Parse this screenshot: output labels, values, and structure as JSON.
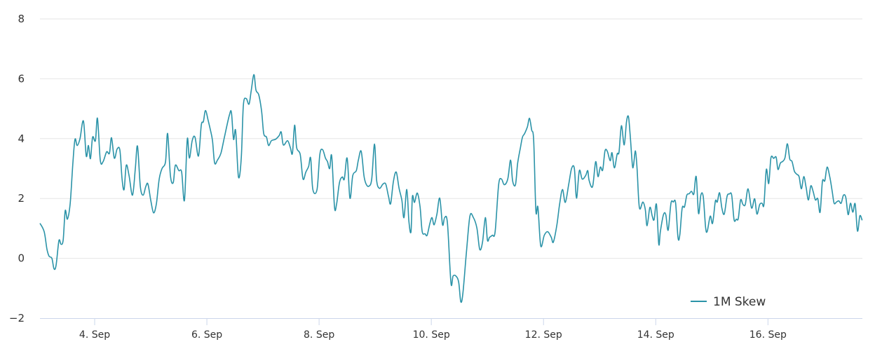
{
  "chart_data": {
    "type": "line",
    "title": "",
    "xlabel": "",
    "ylabel": "",
    "xlim": [
      3.025,
      17.683
    ],
    "ylim": [
      -2,
      8
    ],
    "yticks": [
      -2,
      0,
      2,
      4,
      6,
      8
    ],
    "yticklabels": [
      "−2",
      "0",
      "2",
      "4",
      "6",
      "8"
    ],
    "xticks": [
      4,
      6,
      8,
      10,
      12,
      14,
      16
    ],
    "xticklabels": [
      "4. Sep",
      "6. Sep",
      "8. Sep",
      "10. Sep",
      "12. Sep",
      "14. Sep",
      "16. Sep"
    ],
    "grid": true,
    "legend_position": "bottom-right",
    "series": [
      {
        "name": "1M Skew",
        "color": "#2b93a8",
        "x": [
          3.025,
          3.1,
          3.15,
          3.188,
          3.238,
          3.275,
          3.313,
          3.363,
          3.4,
          3.438,
          3.475,
          3.513,
          3.563,
          3.613,
          3.65,
          3.688,
          3.738,
          3.8,
          3.85,
          3.888,
          3.925,
          3.963,
          4.013,
          4.05,
          4.1,
          4.15,
          4.213,
          4.263,
          4.3,
          4.35,
          4.4,
          4.45,
          4.488,
          4.525,
          4.563,
          4.613,
          4.675,
          4.725,
          4.763,
          4.813,
          4.863,
          4.913,
          4.95,
          5.0,
          5.05,
          5.1,
          5.15,
          5.2,
          5.263,
          5.3,
          5.35,
          5.4,
          5.438,
          5.5,
          5.55,
          5.6,
          5.65,
          5.688,
          5.738,
          5.788,
          5.85,
          5.9,
          5.938,
          5.975,
          6.025,
          6.063,
          6.1,
          6.138,
          6.188,
          6.25,
          6.313,
          6.4,
          6.438,
          6.475,
          6.513,
          6.563,
          6.613,
          6.65,
          6.7,
          6.75,
          6.788,
          6.838,
          6.875,
          6.925,
          6.975,
          7.013,
          7.063,
          7.1,
          7.15,
          7.225,
          7.288,
          7.325,
          7.363,
          7.438,
          7.488,
          7.525,
          7.563,
          7.6,
          7.663,
          7.713,
          7.763,
          7.813,
          7.85,
          7.888,
          7.963,
          8.013,
          8.063,
          8.113,
          8.15,
          8.188,
          8.225,
          8.275,
          8.313,
          8.363,
          8.413,
          8.45,
          8.5,
          8.55,
          8.6,
          8.663,
          8.7,
          8.75,
          8.8,
          8.838,
          8.888,
          8.938,
          8.988,
          9.025,
          9.075,
          9.138,
          9.188,
          9.238,
          9.275,
          9.325,
          9.375,
          9.425,
          9.475,
          9.513,
          9.563,
          9.6,
          9.638,
          9.663,
          9.7,
          9.75,
          9.8,
          9.838,
          9.888,
          9.925,
          9.975,
          10.013,
          10.05,
          10.1,
          10.15,
          10.2,
          10.238,
          10.288,
          10.35,
          10.388,
          10.438,
          10.488,
          10.525,
          10.563,
          10.625,
          10.688,
          10.75,
          10.813,
          10.863,
          10.913,
          10.963,
          11.0,
          11.038,
          11.088,
          11.138,
          11.2,
          11.25,
          11.3,
          11.363,
          11.413,
          11.45,
          11.5,
          11.538,
          11.588,
          11.625,
          11.663,
          11.713,
          11.75,
          11.788,
          11.825,
          11.863,
          11.9,
          11.95,
          12.013,
          12.075,
          12.138,
          12.175,
          12.238,
          12.288,
          12.338,
          12.388,
          12.45,
          12.5,
          12.55,
          12.588,
          12.638,
          12.688,
          12.75,
          12.788,
          12.813,
          12.875,
          12.929,
          12.971,
          13.013,
          13.054,
          13.096,
          13.138,
          13.188,
          13.221,
          13.263,
          13.313,
          13.346,
          13.388,
          13.438,
          13.479,
          13.513,
          13.542,
          13.583,
          13.604,
          13.638,
          13.667,
          13.708,
          13.771,
          13.813,
          13.846,
          13.896,
          13.938,
          13.971,
          14.013,
          14.054,
          14.083,
          14.138,
          14.179,
          14.221,
          14.271,
          14.313,
          14.354,
          14.396,
          14.429,
          14.471,
          14.513,
          14.554,
          14.596,
          14.638,
          14.679,
          14.721,
          14.763,
          14.804,
          14.846,
          14.888,
          14.917,
          14.971,
          15.013,
          15.063,
          15.096,
          15.138,
          15.179,
          15.221,
          15.271,
          15.313,
          15.354,
          15.396,
          15.438,
          15.471,
          15.513,
          15.554,
          15.596,
          15.646,
          15.708,
          15.763,
          15.804,
          15.854,
          15.896,
          15.929,
          15.971,
          16.013,
          16.054,
          16.104,
          16.146,
          16.179,
          16.221,
          16.263,
          16.304,
          16.346,
          16.388,
          16.429,
          16.471,
          16.513,
          16.554,
          16.596,
          16.638,
          16.679,
          16.721,
          16.763,
          16.804,
          16.846,
          16.888,
          16.929,
          16.971,
          17.013,
          17.054,
          17.104,
          17.146,
          17.179,
          17.221,
          17.263,
          17.304,
          17.346,
          17.388,
          17.429,
          17.471,
          17.513,
          17.554,
          17.596,
          17.638,
          17.679
        ],
        "y": [
          1.17,
          0.89,
          0.3,
          0.07,
          0.0,
          -0.35,
          -0.23,
          0.59,
          0.47,
          0.61,
          1.59,
          1.31,
          1.83,
          3.23,
          3.98,
          3.77,
          4.0,
          4.59,
          3.42,
          3.77,
          3.33,
          4.05,
          3.93,
          4.68,
          3.28,
          3.23,
          3.56,
          3.51,
          4.03,
          3.35,
          3.65,
          3.61,
          2.65,
          2.3,
          3.11,
          2.76,
          2.11,
          3.0,
          3.75,
          2.41,
          2.11,
          2.41,
          2.48,
          1.94,
          1.52,
          1.83,
          2.65,
          3.0,
          3.23,
          4.17,
          2.76,
          2.53,
          3.11,
          2.93,
          2.88,
          1.94,
          3.98,
          3.35,
          3.93,
          4.05,
          3.42,
          4.45,
          4.57,
          4.94,
          4.59,
          4.29,
          3.93,
          3.19,
          3.28,
          3.51,
          4.05,
          4.78,
          4.87,
          3.98,
          4.26,
          2.72,
          3.35,
          5.11,
          5.34,
          5.15,
          5.57,
          6.14,
          5.62,
          5.46,
          4.92,
          4.17,
          4.05,
          3.77,
          3.93,
          3.98,
          4.1,
          4.22,
          3.79,
          3.93,
          3.7,
          3.51,
          4.45,
          3.7,
          3.47,
          2.65,
          2.88,
          3.07,
          3.35,
          2.3,
          2.3,
          3.47,
          3.63,
          3.35,
          3.23,
          3.0,
          3.42,
          1.71,
          1.83,
          2.53,
          2.72,
          2.65,
          3.35,
          2.01,
          2.76,
          2.93,
          3.28,
          3.58,
          2.76,
          2.48,
          2.41,
          2.65,
          3.82,
          2.62,
          2.34,
          2.48,
          2.48,
          2.06,
          1.83,
          2.58,
          2.88,
          2.34,
          1.94,
          1.36,
          2.3,
          1.24,
          0.89,
          2.06,
          1.87,
          2.18,
          1.71,
          0.89,
          0.82,
          0.77,
          1.17,
          1.36,
          1.12,
          1.48,
          2.01,
          1.12,
          1.36,
          1.17,
          -0.82,
          -0.59,
          -0.59,
          -0.8,
          -1.45,
          -1.17,
          0.19,
          1.41,
          1.36,
          1.01,
          0.3,
          0.54,
          1.36,
          0.61,
          0.7,
          0.77,
          0.89,
          2.46,
          2.65,
          2.46,
          2.65,
          3.28,
          2.58,
          2.46,
          3.16,
          3.7,
          4.05,
          4.17,
          4.4,
          4.68,
          4.29,
          3.93,
          1.59,
          1.71,
          0.42,
          0.77,
          0.89,
          0.7,
          0.54,
          1.12,
          1.83,
          2.3,
          1.87,
          2.48,
          3.0,
          3.0,
          2.01,
          2.93,
          2.65,
          2.76,
          2.93,
          2.6,
          2.4,
          3.23,
          2.73,
          3.05,
          2.95,
          3.59,
          3.57,
          3.26,
          3.53,
          3.02,
          3.49,
          3.55,
          4.43,
          3.79,
          4.57,
          4.74,
          4.18,
          3.13,
          3.11,
          3.59,
          3.01,
          1.7,
          1.88,
          1.64,
          1.09,
          1.7,
          1.41,
          1.29,
          1.8,
          0.47,
          0.9,
          1.46,
          1.46,
          0.94,
          1.84,
          1.88,
          1.85,
          0.7,
          0.78,
          1.68,
          1.72,
          2.11,
          2.16,
          2.24,
          2.15,
          2.73,
          1.5,
          2.11,
          2.07,
          1.05,
          0.9,
          1.41,
          1.17,
          1.91,
          1.88,
          2.19,
          1.68,
          1.48,
          2.07,
          2.15,
          2.11,
          1.29,
          1.31,
          1.33,
          1.95,
          1.8,
          1.8,
          2.32,
          1.68,
          1.99,
          1.48,
          1.8,
          1.84,
          1.8,
          2.97,
          2.5,
          3.36,
          3.34,
          3.38,
          2.97,
          3.18,
          3.24,
          3.36,
          3.83,
          3.32,
          3.24,
          2.91,
          2.81,
          2.73,
          2.32,
          2.73,
          2.38,
          1.95,
          2.42,
          2.24,
          1.95,
          1.99,
          1.54,
          2.57,
          2.59,
          3.05,
          2.7,
          2.23,
          1.84,
          1.88,
          1.92,
          1.84,
          2.11,
          2.03,
          1.46,
          1.84,
          1.54,
          1.82,
          0.91,
          1.42,
          1.27
        ]
      }
    ]
  }
}
